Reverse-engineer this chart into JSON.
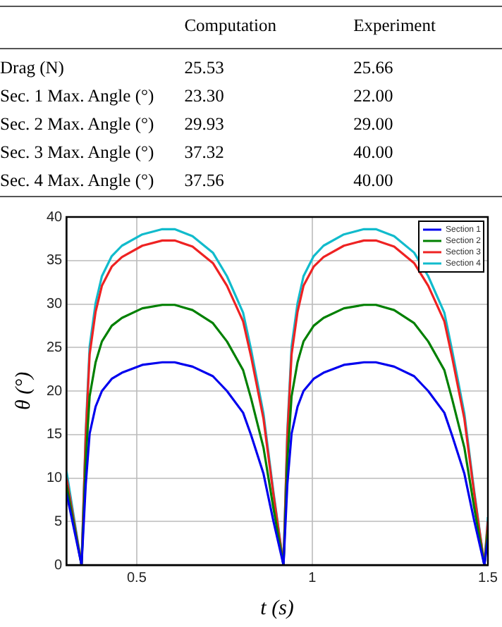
{
  "chart_data": [
    {
      "type": "other",
      "categories": [
        "Computation",
        "Experiment"
      ],
      "y_categories": [
        "Drag (N)",
        "Sec. 1 Max. Angle (°)",
        "Sec. 2 Max. Angle (°)",
        "Sec. 3 Max. Angle (°)",
        "Sec. 4 Max. Angle (°)"
      ],
      "cell_labels": [
        [
          "25.53",
          "25.66"
        ],
        [
          "23.30",
          "22.00"
        ],
        [
          "29.93",
          "29.00"
        ],
        [
          "37.32",
          "40.00"
        ],
        [
          "37.56",
          "40.00"
        ]
      ]
    },
    {
      "type": "line",
      "xlabel": "t (s)",
      "ylabel": "θ (°)",
      "x": [
        0.3,
        0.343,
        0.355,
        0.366,
        0.383,
        0.401,
        0.429,
        0.458,
        0.516,
        0.573,
        0.608,
        0.659,
        0.717,
        0.757,
        0.803,
        0.826,
        0.861,
        0.889,
        0.918,
        0.929,
        0.941,
        0.958,
        0.975,
        1.004,
        1.032,
        1.09,
        1.147,
        1.181,
        1.233,
        1.29,
        1.33,
        1.376,
        1.398,
        1.433,
        1.461,
        1.49,
        1.5
      ],
      "series": [
        {
          "name": "Section 1",
          "color": "#0000ee",
          "values": [
            8.3,
            0,
            9.3,
            15.1,
            18.2,
            20.0,
            21.4,
            22.1,
            23.0,
            23.3,
            23.3,
            22.8,
            21.7,
            20.0,
            17.5,
            14.9,
            10.5,
            5.1,
            0,
            9.3,
            15.1,
            18.2,
            20.0,
            21.4,
            22.1,
            23.0,
            23.3,
            23.3,
            22.8,
            21.7,
            20.0,
            17.5,
            14.9,
            10.5,
            5.1,
            0,
            3
          ]
        },
        {
          "name": "Section 2",
          "color": "#008000",
          "values": [
            9.2,
            0,
            12.0,
            19.4,
            23.3,
            25.7,
            27.5,
            28.4,
            29.5,
            29.9,
            29.9,
            29.3,
            27.8,
            25.7,
            22.4,
            19.1,
            13.5,
            6.6,
            0,
            12.0,
            19.4,
            23.3,
            25.7,
            27.5,
            28.4,
            29.5,
            29.9,
            29.9,
            29.3,
            27.8,
            25.7,
            22.4,
            19.1,
            13.5,
            6.6,
            0,
            4
          ]
        },
        {
          "name": "Section 3",
          "color": "#ee2222",
          "values": [
            10,
            0,
            14.9,
            24.2,
            29.1,
            32.1,
            34.3,
            35.4,
            36.7,
            37.3,
            37.3,
            36.6,
            34.7,
            32.1,
            28.0,
            23.9,
            16.8,
            8.2,
            0,
            14.9,
            24.2,
            29.1,
            32.1,
            34.3,
            35.4,
            36.7,
            37.3,
            37.3,
            36.6,
            34.7,
            32.1,
            28.0,
            23.9,
            16.8,
            8.2,
            0,
            5
          ]
        },
        {
          "name": "Section 4",
          "color": "#11bbcc",
          "values": [
            10.8,
            0,
            15.4,
            25.1,
            30.1,
            33.2,
            35.5,
            36.7,
            38.0,
            38.6,
            38.6,
            37.8,
            35.9,
            33.2,
            29.0,
            24.7,
            17.4,
            8.5,
            0,
            15.4,
            25.1,
            30.1,
            33.2,
            35.5,
            36.7,
            38.0,
            38.6,
            38.6,
            37.8,
            35.9,
            33.2,
            29.0,
            24.7,
            17.4,
            8.5,
            0,
            5.5
          ]
        }
      ],
      "xlim": [
        0.3,
        1.5
      ],
      "xticks": [
        0.5,
        1,
        1.5
      ],
      "ylim": [
        0,
        40
      ],
      "yticks": [
        0,
        5,
        10,
        15,
        20,
        25,
        30,
        35,
        40
      ],
      "grid": true,
      "legend": "top right",
      "marker": "none",
      "line_style": "solid"
    }
  ]
}
